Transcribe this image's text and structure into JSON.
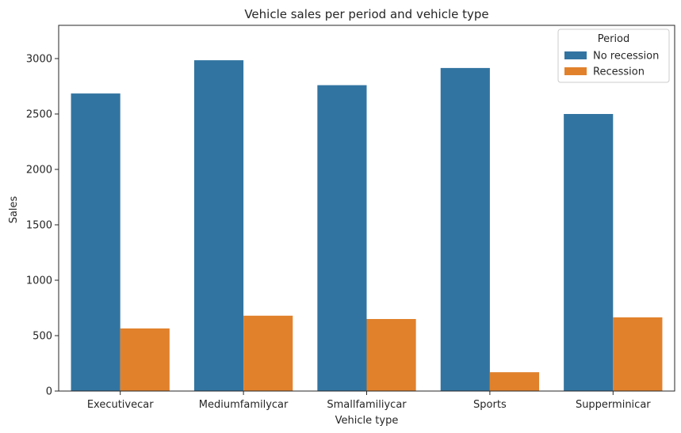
{
  "chart_data": {
    "type": "bar",
    "title": "Vehicle sales per period and vehicle type",
    "xlabel": "Vehicle type",
    "ylabel": "Sales",
    "categories": [
      "Executivecar",
      "Mediumfamilycar",
      "Smallfamiliycar",
      "Sports",
      "Supperminicar"
    ],
    "series": [
      {
        "name": "No recession",
        "color": "#3274a1",
        "values": [
          2685,
          2985,
          2760,
          2915,
          2500
        ]
      },
      {
        "name": "Recession",
        "color": "#e1812c",
        "values": [
          565,
          680,
          650,
          170,
          665
        ]
      }
    ],
    "ylim": [
      0,
      3300
    ],
    "yticks": [
      0,
      500,
      1000,
      1500,
      2000,
      2500,
      3000
    ],
    "legend": {
      "title": "Period",
      "position": "top-right"
    },
    "grid": false
  }
}
